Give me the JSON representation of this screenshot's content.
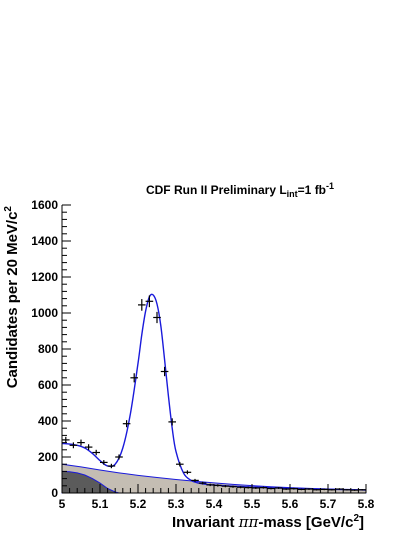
{
  "chart_data": {
    "type": "scatter",
    "title": {
      "prefix": "CDF Run II  Preliminary L",
      "lum_sub": "int",
      "middle": "=1 fb",
      "exponent": "-1"
    },
    "xlabel": {
      "prefix": "Invariant ",
      "greek": "ππ",
      "suffix": "-mass [GeV/c",
      "exponent": "2",
      "close": "]"
    },
    "ylabel": {
      "main": "Candidates per 20 MeV/c",
      "exponent": "2"
    },
    "xlim": [
      5.0,
      5.8
    ],
    "ylim": [
      0,
      1600
    ],
    "x_ticks": [
      "5",
      "5.1",
      "5.2",
      "5.3",
      "5.4",
      "5.5",
      "5.6",
      "5.7",
      "5.8"
    ],
    "y_ticks": [
      "0",
      "200",
      "400",
      "600",
      "800",
      "1000",
      "1200",
      "1400",
      "1600"
    ],
    "grid": false,
    "legend": "none",
    "colors": {
      "fit_line": "#1a1adb",
      "background_fill": "#c4bdb3",
      "dark_component": "#5b5b5b",
      "data_points": "#000000"
    },
    "series": [
      {
        "kind": "data_points",
        "x": [
          5.01,
          5.03,
          5.05,
          5.07,
          5.09,
          5.11,
          5.13,
          5.15,
          5.17,
          5.19,
          5.21,
          5.23,
          5.25,
          5.27,
          5.29,
          5.31,
          5.33,
          5.35,
          5.37,
          5.39,
          5.41,
          5.43,
          5.45,
          5.47,
          5.49,
          5.51,
          5.53,
          5.55,
          5.57,
          5.59,
          5.61,
          5.63,
          5.65,
          5.67,
          5.69,
          5.71,
          5.73,
          5.75,
          5.77,
          5.79
        ],
        "y": [
          295,
          265,
          280,
          255,
          225,
          170,
          150,
          200,
          385,
          640,
          1045,
          1065,
          975,
          675,
          395,
          160,
          115,
          70,
          55,
          45,
          42,
          38,
          35,
          32,
          30,
          28,
          30,
          25,
          28,
          22,
          24,
          20,
          22,
          18,
          20,
          18,
          22,
          18,
          16,
          18
        ]
      },
      {
        "kind": "fit_curve",
        "x": [
          5.0,
          5.02,
          5.04,
          5.06,
          5.08,
          5.1,
          5.12,
          5.14,
          5.16,
          5.18,
          5.2,
          5.21,
          5.22,
          5.23,
          5.24,
          5.25,
          5.26,
          5.27,
          5.28,
          5.29,
          5.3,
          5.32,
          5.34,
          5.36,
          5.38,
          5.4,
          5.45,
          5.5,
          5.55,
          5.6,
          5.65,
          5.7,
          5.75,
          5.8
        ],
        "y": [
          275,
          272,
          265,
          250,
          220,
          180,
          150,
          160,
          250,
          440,
          720,
          880,
          1010,
          1090,
          1100,
          1050,
          930,
          740,
          540,
          360,
          230,
          110,
          70,
          55,
          48,
          44,
          38,
          33,
          29,
          26,
          23,
          21,
          19,
          17
        ]
      },
      {
        "kind": "background_component",
        "x": [
          5.0,
          5.05,
          5.1,
          5.15,
          5.2,
          5.25,
          5.3,
          5.35,
          5.4,
          5.45,
          5.5,
          5.55,
          5.6,
          5.65,
          5.7,
          5.75,
          5.8
        ],
        "y": [
          160,
          145,
          128,
          112,
          98,
          86,
          75,
          65,
          56,
          48,
          41,
          35,
          30,
          26,
          22,
          19,
          16
        ]
      },
      {
        "kind": "dark_component",
        "x": [
          5.0,
          5.02,
          5.04,
          5.06,
          5.08,
          5.1,
          5.12,
          5.14,
          5.15
        ],
        "y": [
          120,
          118,
          112,
          100,
          80,
          55,
          25,
          6,
          0
        ]
      }
    ]
  }
}
